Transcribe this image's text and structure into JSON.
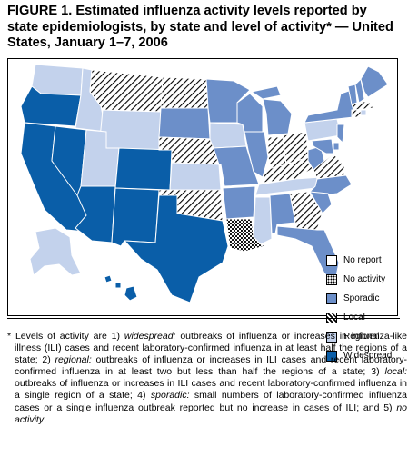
{
  "figure": {
    "title": "FIGURE 1. Estimated influenza activity levels reported by state epidemiologists, by state and level of activity* — United States, January 1–7, 2006"
  },
  "colors": {
    "widespread": "#0a5ea8",
    "regional": "#c3d2ec",
    "sporadic": "#6c8fc9",
    "local_stripe": "#000000",
    "no_activity_dot": "#000000",
    "no_report": "#ffffff"
  },
  "legend": [
    {
      "key": "no_report",
      "label": "No report"
    },
    {
      "key": "no_activity",
      "label": "No activity"
    },
    {
      "key": "sporadic",
      "label": "Sporadic"
    },
    {
      "key": "local",
      "label": "Local"
    },
    {
      "key": "regional",
      "label": "Regional"
    },
    {
      "key": "widespread",
      "label": "Widespread"
    }
  ],
  "states": {
    "WA": "regional",
    "OR": "widespread",
    "CA": "widespread",
    "NV": "widespread",
    "ID": "regional",
    "MT": "local",
    "WY": "regional",
    "UT": "regional",
    "AZ": "widespread",
    "CO": "widespread",
    "NM": "widespread",
    "ND": "local",
    "SD": "sporadic",
    "NE": "local",
    "KS": "regional",
    "OK": "local",
    "TX": "widespread",
    "MN": "sporadic",
    "IA": "regional",
    "MO": "sporadic",
    "AR": "sporadic",
    "LA": "no_activity",
    "WI": "sporadic",
    "IL": "sporadic",
    "MS": "regional",
    "MI": "sporadic",
    "IN": "local",
    "KY": "local",
    "TN": "regional",
    "AL": "sporadic",
    "GA": "local",
    "FL": "sporadic",
    "OH": "local",
    "WV": "sporadic",
    "VA": "local",
    "NC": "sporadic",
    "SC": "sporadic",
    "PA": "regional",
    "NY": "sporadic",
    "VT": "sporadic",
    "NH": "sporadic",
    "ME": "sporadic",
    "MA": "local",
    "CT": "local",
    "RI": "regional",
    "NJ": "sporadic",
    "DE": "sporadic",
    "MD": "sporadic",
    "AK": "regional",
    "HI": "widespread"
  },
  "footnote": {
    "marker": "*",
    "t1": "Levels of activity are 1) ",
    "e1": "widespread:",
    "t2": " outbreaks of influenza or increases in influenza-like illness (ILI) cases and recent laboratory-confirmed influenza in at least half the regions of a state; 2) ",
    "e2": "regional:",
    "t3": " outbreaks of influenza or increases in ILI cases and recent laboratory-confirmed influenza in at least two but less than half the regions of a state; 3) ",
    "e3": "local:",
    "t4": " outbreaks of influenza or increases in ILI cases and recent laboratory-confirmed influenza in a single region of a state; 4) ",
    "e4": "sporadic:",
    "t5": " small numbers of laboratory-confirmed influenza cases or a single influenza outbreak reported but no increase in cases of ILI; and 5) ",
    "e5": "no activity",
    "t6": "."
  }
}
